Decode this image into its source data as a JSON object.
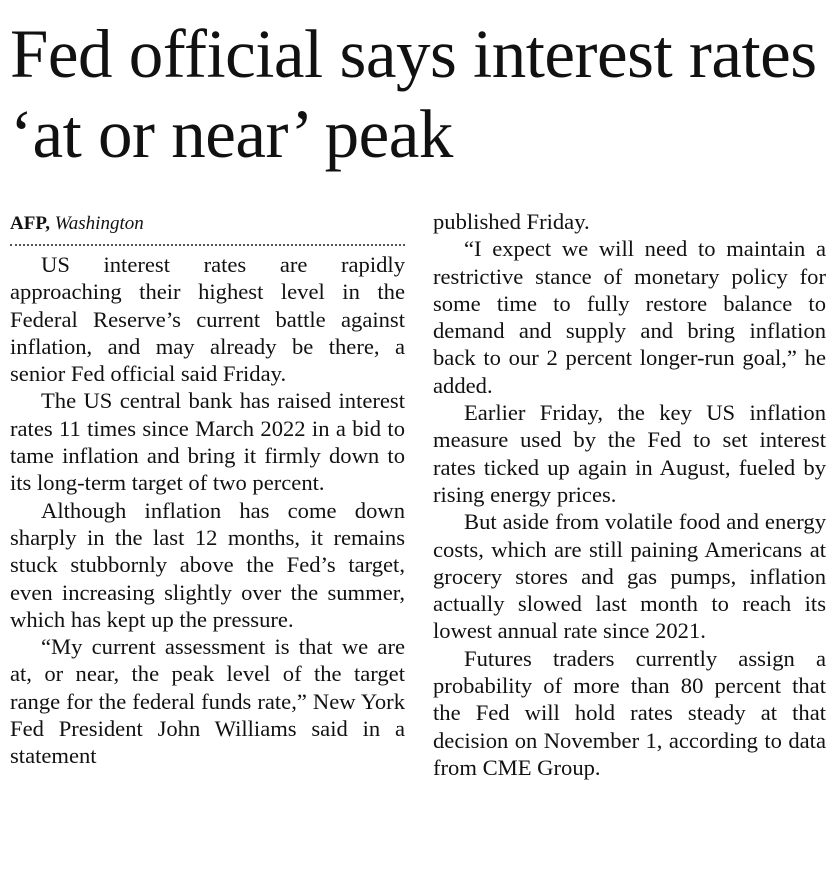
{
  "header": {
    "title": "Fed official says interest rates ‘at or near’ peak"
  },
  "byline": {
    "agency": "AFP,",
    "location": "Washington"
  },
  "columns": [
    {
      "paragraphs": [
        "US interest rates are rapidly approaching their highest level in the Federal Reserve’s current battle against inflation, and may already be there, a senior Fed official said Friday.",
        "The US central bank has raised interest rates 11 times since March 2022 in a bid to tame inflation and bring it firmly down to its long-term target of two percent.",
        "Although inflation has come down sharply in the last 12 months, it remains stuck stubbornly above the Fed’s target, even increasing slightly over the summer, which has kept up the pressure.",
        "“My current assessment is that we are at, or near, the peak level of the target range for the federal funds rate,” New York Fed President John Williams said in a statement"
      ]
    },
    {
      "paragraphs": [
        "published Friday.",
        "“I expect we will need to maintain a restrictive stance of monetary policy for some time to fully restore balance to demand and supply and bring inflation back to our 2 percent longer-run goal,” he added.",
        "Earlier Friday, the key US inflation measure used by the Fed to set interest rates ticked up again in August, fueled by rising energy prices.",
        "But aside from volatile food and energy costs, which are still paining Americans at grocery stores and gas pumps, inflation actually slowed last month to reach its lowest annual rate since 2021.",
        "Futures traders currently assign a probability of more than 80 percent that the Fed will hold rates steady at that decision on November 1, according to data from CME Group."
      ]
    }
  ]
}
